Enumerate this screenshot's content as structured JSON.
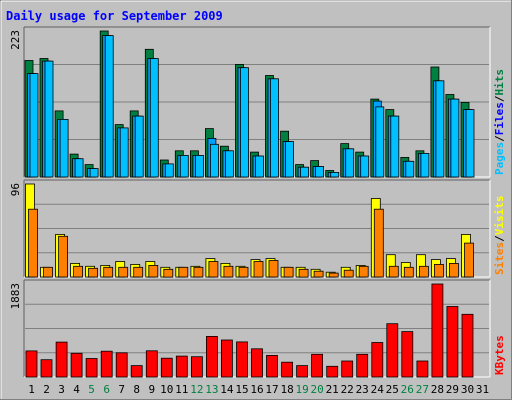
{
  "title": "Daily usage for September 2009",
  "colors": {
    "background": "#c0c0c0",
    "title": "#0000ff",
    "hits": "#008040",
    "files": "#00a0ff",
    "pages": "#00c0ff",
    "visits": "#ffff00",
    "sites": "#ff8000",
    "kbytes": "#ff0000",
    "weekend_label": "#008040",
    "weekday_label": "#000000"
  },
  "chart_data": [
    {
      "type": "bar",
      "name": "hits-files-pages",
      "y_max_label": "223",
      "ylim": [
        0,
        223
      ],
      "legend": [
        {
          "label": "Pages",
          "color": "#00c0ff"
        },
        {
          "label": "Files",
          "color": "#0000ff"
        },
        {
          "label": "Hits",
          "color": "#008040"
        }
      ],
      "categories": [
        "1",
        "2",
        "3",
        "4",
        "5",
        "6",
        "7",
        "8",
        "9",
        "10",
        "11",
        "12",
        "13",
        "14",
        "15",
        "16",
        "17",
        "18",
        "19",
        "20",
        "21",
        "22",
        "23",
        "24",
        "25",
        "26",
        "27",
        "28",
        "29",
        "30",
        "31"
      ],
      "series": [
        {
          "name": "Hits",
          "values": [
            178,
            181,
            101,
            35,
            19,
            223,
            80,
            101,
            195,
            26,
            40,
            40,
            74,
            47,
            172,
            38,
            155,
            70,
            19,
            25,
            10,
            51,
            38,
            119,
            103,
            30,
            40,
            168,
            126,
            114,
            0
          ]
        },
        {
          "name": "Files",
          "values": [
            158,
            177,
            88,
            28,
            13,
            216,
            75,
            93,
            181,
            20,
            33,
            33,
            59,
            40,
            167,
            32,
            150,
            54,
            15,
            16,
            7,
            43,
            32,
            116,
            93,
            24,
            36,
            147,
            119,
            103,
            0
          ]
        },
        {
          "name": "Pages",
          "values": [
            158,
            177,
            88,
            28,
            13,
            216,
            75,
            93,
            181,
            20,
            33,
            33,
            50,
            40,
            167,
            32,
            150,
            54,
            15,
            16,
            7,
            43,
            32,
            107,
            93,
            24,
            36,
            147,
            119,
            103,
            0
          ]
        }
      ]
    },
    {
      "type": "bar",
      "name": "visits-sites",
      "y_max_label": "96",
      "ylim": [
        0,
        96
      ],
      "legend": [
        {
          "label": "Sites",
          "color": "#ff8000"
        },
        {
          "label": "Visits",
          "color": "#ffff00"
        }
      ],
      "categories": [
        "1",
        "2",
        "3",
        "4",
        "5",
        "6",
        "7",
        "8",
        "9",
        "10",
        "11",
        "12",
        "13",
        "14",
        "15",
        "16",
        "17",
        "18",
        "19",
        "20",
        "21",
        "22",
        "23",
        "24",
        "25",
        "26",
        "27",
        "28",
        "29",
        "30",
        "31"
      ],
      "series": [
        {
          "name": "Visits",
          "values": [
            96,
            10,
            44,
            14,
            11,
            12,
            16,
            13,
            16,
            10,
            10,
            11,
            19,
            14,
            11,
            18,
            19,
            10,
            10,
            8,
            5,
            10,
            12,
            81,
            23,
            15,
            23,
            18,
            19,
            44,
            0
          ]
        },
        {
          "name": "Sites",
          "values": [
            70,
            10,
            42,
            11,
            9,
            10,
            10,
            10,
            12,
            8,
            10,
            10,
            16,
            11,
            10,
            16,
            17,
            10,
            8,
            6,
            4,
            7,
            11,
            70,
            11,
            10,
            11,
            13,
            14,
            35,
            0
          ]
        }
      ]
    },
    {
      "type": "bar",
      "name": "kbytes",
      "y_max_label": "1883",
      "ylim": [
        0,
        1883
      ],
      "legend": [
        {
          "label": "KBytes",
          "color": "#ff0000"
        }
      ],
      "categories": [
        "1",
        "2",
        "3",
        "4",
        "5",
        "6",
        "7",
        "8",
        "9",
        "10",
        "11",
        "12",
        "13",
        "14",
        "15",
        "16",
        "17",
        "18",
        "19",
        "20",
        "21",
        "22",
        "23",
        "24",
        "25",
        "26",
        "27",
        "28",
        "29",
        "30",
        "31"
      ],
      "series": [
        {
          "name": "KBytes",
          "values": [
            529,
            350,
            706,
            480,
            375,
            523,
            490,
            230,
            530,
            380,
            424,
            411,
            823,
            750,
            711,
            570,
            438,
            300,
            230,
            460,
            217,
            323,
            460,
            699,
            1080,
            920,
            323,
            1883,
            1427,
            1270,
            0
          ]
        }
      ]
    }
  ],
  "x_labels": [
    {
      "label": "1",
      "weekend": false
    },
    {
      "label": "2",
      "weekend": false
    },
    {
      "label": "3",
      "weekend": false
    },
    {
      "label": "4",
      "weekend": false
    },
    {
      "label": "5",
      "weekend": true
    },
    {
      "label": "6",
      "weekend": true
    },
    {
      "label": "7",
      "weekend": false
    },
    {
      "label": "8",
      "weekend": false
    },
    {
      "label": "9",
      "weekend": false
    },
    {
      "label": "10",
      "weekend": false
    },
    {
      "label": "11",
      "weekend": false
    },
    {
      "label": "12",
      "weekend": true
    },
    {
      "label": "13",
      "weekend": true
    },
    {
      "label": "14",
      "weekend": false
    },
    {
      "label": "15",
      "weekend": false
    },
    {
      "label": "16",
      "weekend": false
    },
    {
      "label": "17",
      "weekend": false
    },
    {
      "label": "18",
      "weekend": false
    },
    {
      "label": "19",
      "weekend": true
    },
    {
      "label": "20",
      "weekend": true
    },
    {
      "label": "21",
      "weekend": false
    },
    {
      "label": "22",
      "weekend": false
    },
    {
      "label": "23",
      "weekend": false
    },
    {
      "label": "24",
      "weekend": false
    },
    {
      "label": "25",
      "weekend": false
    },
    {
      "label": "26",
      "weekend": true
    },
    {
      "label": "27",
      "weekend": true
    },
    {
      "label": "28",
      "weekend": false
    },
    {
      "label": "29",
      "weekend": false
    },
    {
      "label": "30",
      "weekend": false
    },
    {
      "label": "31",
      "weekend": false
    }
  ]
}
